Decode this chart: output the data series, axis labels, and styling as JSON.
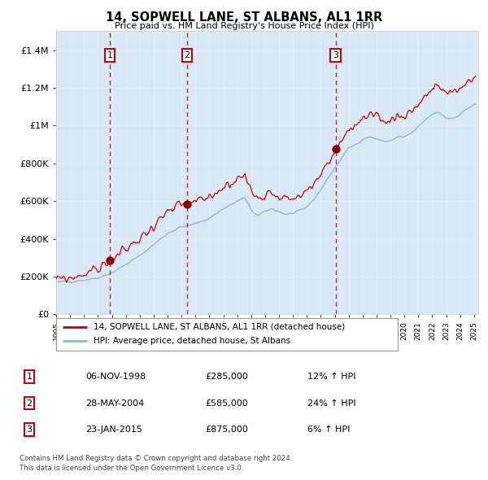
{
  "title": "14, SOPWELL LANE, ST ALBANS, AL1 1RR",
  "subtitle": "Price paid vs. HM Land Registry's House Price Index (HPI)",
  "footer": "Contains HM Land Registry data © Crown copyright and database right 2024.\nThis data is licensed under the Open Government Licence v3.0.",
  "legend_line1": "14, SOPWELL LANE, ST ALBANS, AL1 1RR (detached house)",
  "legend_line2": "HPI: Average price, detached house, St Albans",
  "sale_dates_num": [
    1998.847,
    2004.405,
    2015.055
  ],
  "sale_prices": [
    285000,
    585000,
    875000
  ],
  "sale_labels": [
    "1",
    "2",
    "3"
  ],
  "sale_info": [
    {
      "num": "1",
      "date": "06-NOV-1998",
      "price": "£285,000",
      "pct": "12% ↑ HPI"
    },
    {
      "num": "2",
      "date": "28-MAY-2004",
      "price": "£585,000",
      "pct": "24% ↑ HPI"
    },
    {
      "num": "3",
      "date": "23-JAN-2015",
      "price": "£875,000",
      "pct": "6% ↑ HPI"
    }
  ],
  "hpi_color": "#92b4d4",
  "price_color": "#cc0000",
  "dot_color": "#880000",
  "vline_color": "#cc0000",
  "shade_color": "#d0e4f4",
  "plot_bg": "#e8f0f8",
  "grid_color": "#ffffff",
  "ylim": [
    0,
    1500000
  ],
  "yticks": [
    0,
    200000,
    400000,
    600000,
    800000,
    1000000,
    1200000,
    1400000
  ],
  "ytick_labels": [
    "£0",
    "£200K",
    "£400K",
    "£600K",
    "£800K",
    "£1M",
    "£1.2M",
    "£1.4M"
  ],
  "xstart": 1995.0,
  "xend": 2025.3
}
